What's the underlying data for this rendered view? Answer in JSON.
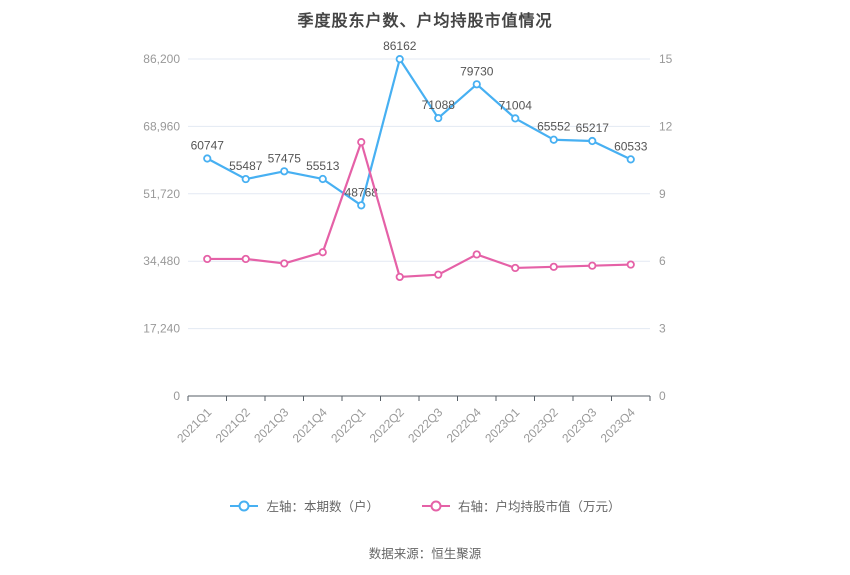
{
  "title": "季度股东户数、户均持股市值情况",
  "footer": "数据来源：恒生聚源",
  "legend": [
    {
      "label": "左轴：本期数（户）",
      "color": "#47b0f2"
    },
    {
      "label": "右轴：户均持股市值（万元）",
      "color": "#e561a7"
    }
  ],
  "colors": {
    "blue_series": "#47b0f2",
    "pink_series": "#e561a7",
    "gridline": "#e3e9f3",
    "axis_line": "#555e66",
    "tick_label": "#999999",
    "data_label": "#555555",
    "title_text": "#454545"
  },
  "chart_data": {
    "type": "line",
    "categories": [
      "2021Q1",
      "2021Q2",
      "2021Q3",
      "2021Q4",
      "2022Q1",
      "2022Q2",
      "2022Q3",
      "2022Q4",
      "2023Q1",
      "2023Q2",
      "2023Q3",
      "2023Q4"
    ],
    "series": [
      {
        "name": "左轴：本期数（户）",
        "axis": "left",
        "color": "#47b0f2",
        "values": [
          60747,
          55487,
          57475,
          55513,
          48768,
          86162,
          71088,
          79730,
          71004,
          65552,
          65217,
          60533
        ],
        "point_labels": [
          "60747",
          "55487",
          "57475",
          "55513",
          "48768",
          "86162",
          "71088",
          "79730",
          "71004",
          "65552",
          "65217",
          "60533"
        ]
      },
      {
        "name": "右轴：户均持股市值（万元）",
        "axis": "right",
        "color": "#e561a7",
        "values": [
          6.1,
          6.1,
          5.9,
          6.4,
          11.3,
          5.3,
          5.4,
          6.3,
          5.7,
          5.75,
          5.8,
          5.85
        ],
        "point_labels": null
      }
    ],
    "left_axis": {
      "max": 86200,
      "ticks": [
        0,
        17240,
        34480,
        51720,
        68960,
        86200
      ],
      "tick_labels": [
        "0",
        "17,240",
        "34,480",
        "51,720",
        "68,960",
        "86,200"
      ]
    },
    "right_axis": {
      "max": 15,
      "ticks": [
        0,
        3,
        6,
        9,
        12,
        15
      ],
      "tick_labels": [
        "0",
        "3",
        "6",
        "9",
        "12",
        "15"
      ]
    },
    "grid": true,
    "legend_position": "bottom",
    "x_label_rotation": -45
  }
}
